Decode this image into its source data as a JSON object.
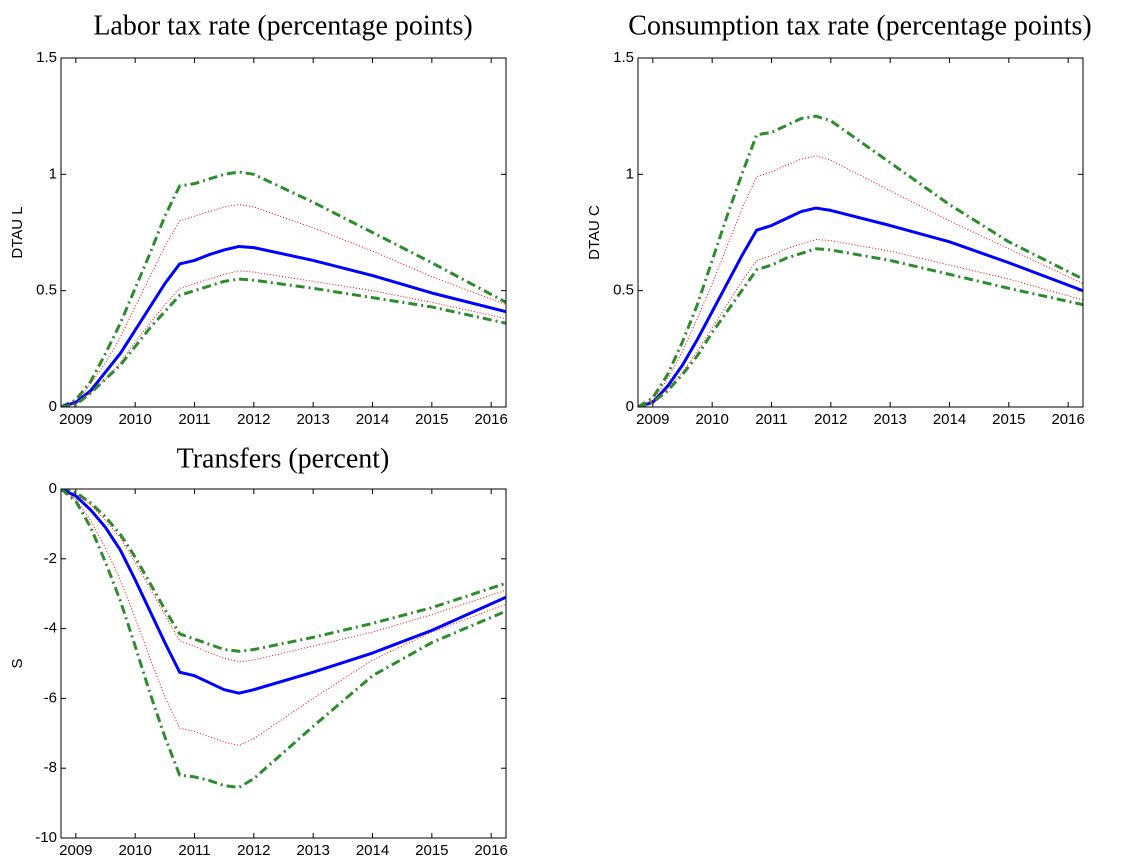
{
  "chart_data": [
    {
      "type": "line",
      "title": "Labor tax rate (percentage points)",
      "y_label": "DTAU L",
      "x": [
        2008.75,
        2009,
        2009.25,
        2009.5,
        2009.75,
        2010,
        2010.25,
        2010.5,
        2010.75,
        2011,
        2011.25,
        2011.5,
        2011.75,
        2012,
        2013,
        2014,
        2015,
        2016.25
      ],
      "xlim": [
        2008.75,
        2016.25
      ],
      "xticks": [
        2009,
        2010,
        2011,
        2012,
        2013,
        2014,
        2015,
        2016
      ],
      "ylim": [
        0,
        1.5
      ],
      "yticks": [
        0,
        0.5,
        1,
        1.5
      ],
      "series": [
        {
          "color": "#2e8b2e",
          "style": "dashdot",
          "values": [
            0,
            0.03,
            0.11,
            0.23,
            0.36,
            0.51,
            0.66,
            0.82,
            0.95,
            0.96,
            0.98,
            1.0,
            1.01,
            1.0,
            0.88,
            0.75,
            0.62,
            0.45
          ]
        },
        {
          "color": "#ff0000",
          "style": "dotted",
          "values": [
            0,
            0.02,
            0.1,
            0.19,
            0.3,
            0.43,
            0.56,
            0.69,
            0.8,
            0.82,
            0.84,
            0.86,
            0.87,
            0.86,
            0.77,
            0.67,
            0.56,
            0.44
          ]
        },
        {
          "color": "#0000ff",
          "style": "solid",
          "values": [
            0,
            0.02,
            0.07,
            0.15,
            0.23,
            0.33,
            0.43,
            0.53,
            0.615,
            0.63,
            0.655,
            0.675,
            0.69,
            0.685,
            0.63,
            0.565,
            0.49,
            0.41
          ]
        },
        {
          "color": "#ff0000",
          "style": "dotted",
          "values": [
            0,
            0.02,
            0.06,
            0.12,
            0.19,
            0.28,
            0.36,
            0.44,
            0.51,
            0.53,
            0.55,
            0.57,
            0.585,
            0.58,
            0.54,
            0.5,
            0.45,
            0.38
          ]
        },
        {
          "color": "#2e8b2e",
          "style": "dashdot",
          "values": [
            0,
            0.01,
            0.06,
            0.12,
            0.18,
            0.26,
            0.34,
            0.41,
            0.48,
            0.5,
            0.52,
            0.54,
            0.55,
            0.545,
            0.51,
            0.47,
            0.43,
            0.36
          ]
        }
      ]
    },
    {
      "type": "line",
      "title": "Consumption tax rate (percentage points)",
      "y_label": "DTAU C",
      "x": [
        2008.75,
        2009,
        2009.25,
        2009.5,
        2009.75,
        2010,
        2010.25,
        2010.5,
        2010.75,
        2011,
        2011.25,
        2011.5,
        2011.75,
        2012,
        2013,
        2014,
        2015,
        2016.25
      ],
      "xlim": [
        2008.75,
        2016.25
      ],
      "xticks": [
        2009,
        2010,
        2011,
        2012,
        2013,
        2014,
        2015,
        2016
      ],
      "ylim": [
        0,
        1.5
      ],
      "yticks": [
        0,
        0.5,
        1,
        1.5
      ],
      "series": [
        {
          "color": "#2e8b2e",
          "style": "dashdot",
          "values": [
            0,
            0.04,
            0.14,
            0.28,
            0.44,
            0.63,
            0.82,
            1.0,
            1.17,
            1.18,
            1.21,
            1.24,
            1.25,
            1.23,
            1.05,
            0.87,
            0.71,
            0.55
          ]
        },
        {
          "color": "#ff0000",
          "style": "dotted",
          "values": [
            0,
            0.03,
            0.12,
            0.24,
            0.38,
            0.53,
            0.69,
            0.85,
            0.99,
            1.01,
            1.04,
            1.065,
            1.08,
            1.06,
            0.93,
            0.8,
            0.68,
            0.53
          ]
        },
        {
          "color": "#0000ff",
          "style": "solid",
          "values": [
            0,
            0.02,
            0.09,
            0.18,
            0.29,
            0.41,
            0.53,
            0.65,
            0.76,
            0.78,
            0.81,
            0.84,
            0.855,
            0.845,
            0.78,
            0.71,
            0.62,
            0.5
          ]
        },
        {
          "color": "#ff0000",
          "style": "dotted",
          "values": [
            0,
            0.02,
            0.08,
            0.15,
            0.24,
            0.34,
            0.44,
            0.54,
            0.63,
            0.65,
            0.68,
            0.7,
            0.72,
            0.715,
            0.67,
            0.61,
            0.55,
            0.46
          ]
        },
        {
          "color": "#2e8b2e",
          "style": "dashdot",
          "values": [
            0,
            0.02,
            0.07,
            0.14,
            0.22,
            0.32,
            0.41,
            0.5,
            0.59,
            0.61,
            0.64,
            0.66,
            0.68,
            0.675,
            0.63,
            0.57,
            0.51,
            0.44
          ]
        }
      ]
    },
    {
      "type": "line",
      "title": "Transfers (percent)",
      "y_label": "S",
      "x": [
        2008.75,
        2009,
        2009.25,
        2009.5,
        2009.75,
        2010,
        2010.25,
        2010.5,
        2010.75,
        2011,
        2011.25,
        2011.5,
        2011.75,
        2012,
        2013,
        2014,
        2015,
        2016.25
      ],
      "xlim": [
        2008.75,
        2016.25
      ],
      "xticks": [
        2009,
        2010,
        2011,
        2012,
        2013,
        2014,
        2015,
        2016
      ],
      "ylim": [
        -10,
        0
      ],
      "yticks": [
        -10,
        -8,
        -6,
        -4,
        -2,
        0
      ],
      "series": [
        {
          "color": "#2e8b2e",
          "style": "dashdot",
          "values": [
            0,
            -0.1,
            -0.4,
            -0.8,
            -1.3,
            -1.95,
            -2.7,
            -3.45,
            -4.15,
            -4.3,
            -4.45,
            -4.6,
            -4.65,
            -4.6,
            -4.25,
            -3.85,
            -3.4,
            -2.7
          ]
        },
        {
          "color": "#ff0000",
          "style": "dotted",
          "values": [
            0,
            -0.15,
            -0.45,
            -0.9,
            -1.4,
            -2.1,
            -2.85,
            -3.6,
            -4.35,
            -4.5,
            -4.7,
            -4.85,
            -4.95,
            -4.9,
            -4.5,
            -4.1,
            -3.6,
            -2.9
          ]
        },
        {
          "color": "#0000ff",
          "style": "solid",
          "values": [
            0,
            -0.2,
            -0.6,
            -1.1,
            -1.75,
            -2.6,
            -3.5,
            -4.4,
            -5.25,
            -5.35,
            -5.55,
            -5.75,
            -5.85,
            -5.75,
            -5.25,
            -4.7,
            -4.05,
            -3.1
          ]
        },
        {
          "color": "#ff0000",
          "style": "dotted",
          "values": [
            0,
            -0.3,
            -0.9,
            -1.7,
            -2.6,
            -3.7,
            -4.85,
            -5.95,
            -6.85,
            -6.95,
            -7.1,
            -7.25,
            -7.35,
            -7.15,
            -6.0,
            -4.9,
            -4.1,
            -3.3
          ]
        },
        {
          "color": "#2e8b2e",
          "style": "dashdot",
          "values": [
            0,
            -0.35,
            -1.1,
            -2.1,
            -3.2,
            -4.5,
            -5.85,
            -7.1,
            -8.2,
            -8.25,
            -8.35,
            -8.5,
            -8.55,
            -8.3,
            -6.8,
            -5.35,
            -4.4,
            -3.5
          ]
        }
      ]
    }
  ]
}
